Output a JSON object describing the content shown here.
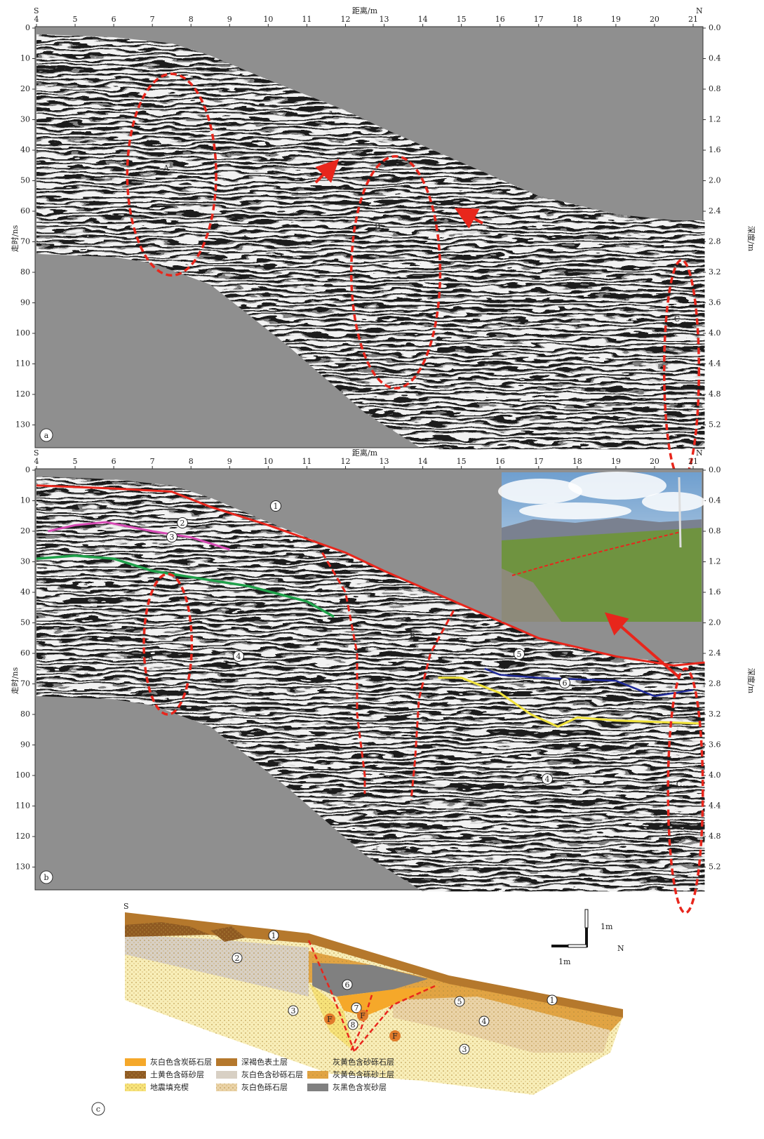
{
  "figure": {
    "panels": [
      {
        "label": "a",
        "x_title": "距离/m",
        "south": "S",
        "north": "N",
        "x_ticks": [
          "4",
          "5",
          "6",
          "7",
          "8",
          "9",
          "10",
          "11",
          "12",
          "13",
          "14",
          "15",
          "16",
          "17",
          "18",
          "19",
          "20",
          "21"
        ],
        "y_title": "走时/ns",
        "y_ticks": [
          "0",
          "10",
          "20",
          "30",
          "40",
          "50",
          "60",
          "70",
          "80",
          "90",
          "100",
          "110",
          "120",
          "130"
        ],
        "y2_title": "深度/m",
        "y2_ticks": [
          "0.0",
          "0.4",
          "0.8",
          "1.2",
          "1.6",
          "2.0",
          "2.4",
          "2.8",
          "3.2",
          "3.6",
          "4.0",
          "4.4",
          "4.8",
          "5.2"
        ],
        "annotations": [
          "A",
          "B",
          "C"
        ]
      },
      {
        "label": "b",
        "x_title": "距离/m",
        "south": "S",
        "north": "N",
        "x_ticks": [
          "4",
          "5",
          "6",
          "7",
          "8",
          "9",
          "10",
          "11",
          "12",
          "13",
          "14",
          "15",
          "16",
          "17",
          "18",
          "19",
          "20",
          "21"
        ],
        "y_title": "走时/ns",
        "y_ticks": [
          "0",
          "10",
          "20",
          "30",
          "40",
          "50",
          "60",
          "70",
          "80",
          "90",
          "100",
          "110",
          "120",
          "130"
        ],
        "y2_title": "深度/m",
        "y2_ticks": [
          "0.0",
          "0.4",
          "0.8",
          "1.2",
          "1.6",
          "2.0",
          "2.4",
          "2.8",
          "3.2",
          "3.6",
          "4.0",
          "4.4",
          "4.8",
          "5.2"
        ],
        "annotations": [
          "A",
          "B",
          "C"
        ],
        "layer_marks": [
          "1",
          "2",
          "3",
          "4",
          "5",
          "6",
          "4"
        ]
      }
    ],
    "section": {
      "label": "c",
      "south": "S",
      "north": "N",
      "scale_v": "1m",
      "scale_h": "1m",
      "layer_marks": [
        "1",
        "2",
        "3",
        "6",
        "7",
        "8",
        "5",
        "1",
        "4",
        "3"
      ],
      "fault_marks": [
        "F",
        "F",
        "F"
      ],
      "legend": [
        {
          "text": "灰白色含炭砾石层",
          "color": "#f5a82a"
        },
        {
          "text": "深褐色表土层",
          "color": "#b5782c"
        },
        {
          "text": "灰黄色含砂砾石层",
          "color": "#f8eeb8"
        },
        {
          "text": "土黄色含砾砂层",
          "color": "#8f5a22"
        },
        {
          "text": "灰白色含砂砾石层",
          "color": "#d8d0c4"
        },
        {
          "text": "灰黄色含砾砂土层",
          "color": "#e2a443"
        },
        {
          "text": "地震填充楔",
          "color": "#f7e37a"
        },
        {
          "text": "灰白色砾石层",
          "color": "#ead3a8"
        },
        {
          "text": "灰黑色含炭砂层",
          "color": "#808080"
        }
      ]
    }
  }
}
